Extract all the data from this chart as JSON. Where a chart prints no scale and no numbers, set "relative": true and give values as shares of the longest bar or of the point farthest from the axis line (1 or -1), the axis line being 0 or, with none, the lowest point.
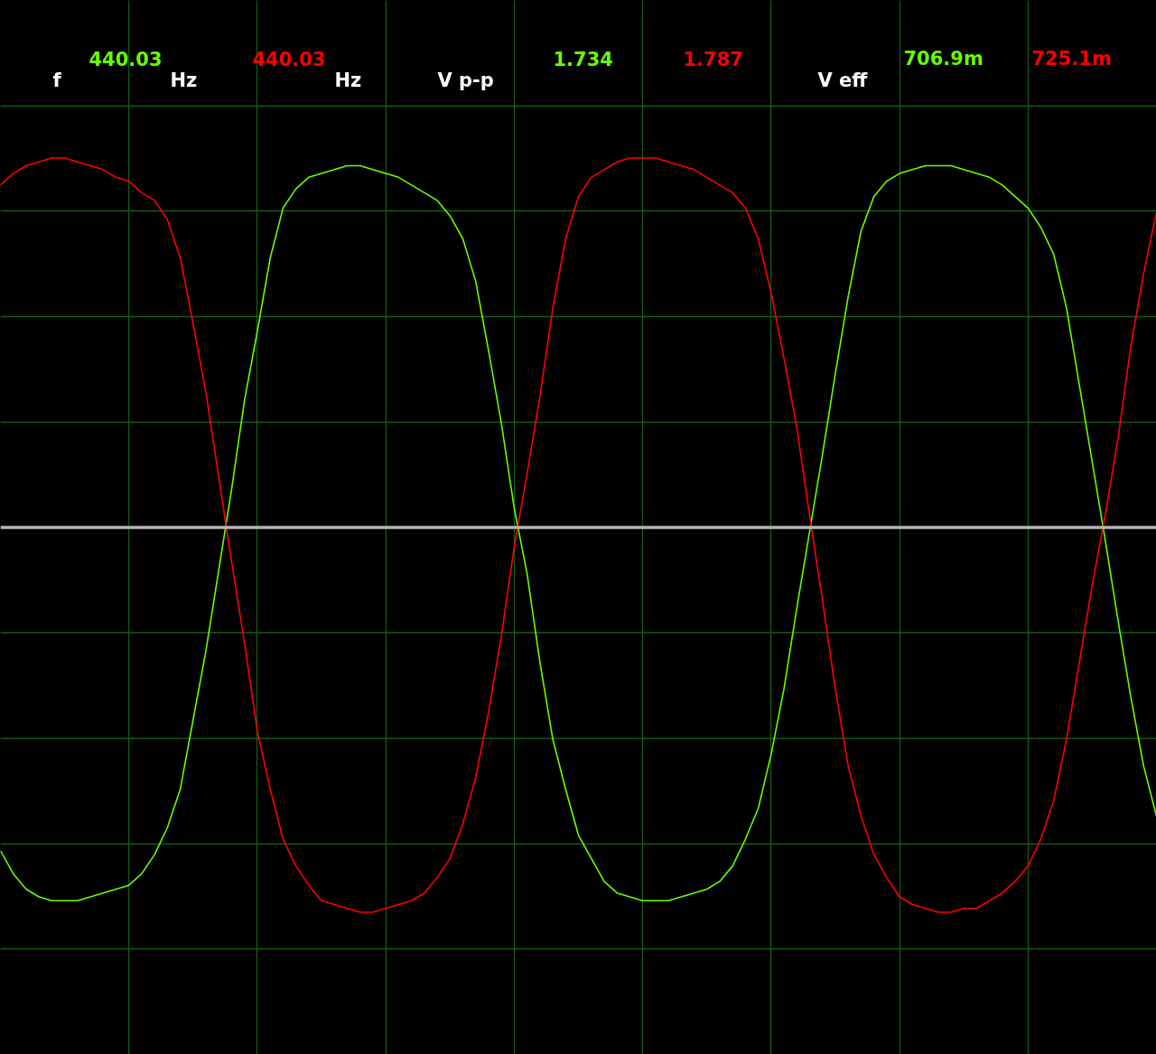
{
  "chart_data": {
    "type": "line",
    "relative": true,
    "grid": true,
    "categories": [
      null,
      null,
      null,
      null,
      null,
      null,
      null,
      null,
      null,
      null,
      null,
      null,
      null,
      null,
      null,
      null,
      null,
      null,
      null,
      null,
      null,
      null,
      null,
      null,
      null,
      null,
      null,
      null,
      null,
      null,
      null,
      null,
      null,
      null,
      null,
      null,
      null,
      null,
      null,
      null,
      null,
      null,
      null,
      null,
      null,
      null,
      null,
      null,
      null,
      null,
      null,
      null,
      null,
      null,
      null,
      null,
      null,
      null,
      null,
      null,
      null,
      null,
      null,
      null,
      null,
      null,
      null,
      null,
      null,
      null,
      null,
      null,
      null,
      null,
      null,
      null,
      null,
      null,
      null,
      null,
      null,
      null,
      null,
      null,
      null,
      null,
      null,
      null,
      null,
      null,
      null
    ],
    "series": [
      {
        "color": "#66ff00",
        "values": [
          -0.84,
          -0.9,
          -0.94,
          -0.96,
          -0.97,
          -0.97,
          -0.97,
          -0.96,
          -0.95,
          -0.94,
          -0.93,
          -0.9,
          -0.85,
          -0.78,
          -0.68,
          -0.5,
          -0.32,
          -0.11,
          0.1,
          0.33,
          0.51,
          0.7,
          0.83,
          0.88,
          0.91,
          0.92,
          0.93,
          0.94,
          0.94,
          0.93,
          0.92,
          0.91,
          0.89,
          0.87,
          0.85,
          0.81,
          0.75,
          0.64,
          0.46,
          0.27,
          0.05,
          -0.12,
          -0.35,
          -0.55,
          -0.68,
          -0.8,
          -0.86,
          -0.92,
          -0.95,
          -0.96,
          -0.97,
          -0.97,
          -0.97,
          -0.96,
          -0.95,
          -0.94,
          -0.92,
          -0.88,
          -0.81,
          -0.73,
          -0.59,
          -0.42,
          -0.21,
          -0.01,
          0.19,
          0.4,
          0.6,
          0.77,
          0.86,
          0.9,
          0.92,
          0.93,
          0.94,
          0.94,
          0.94,
          0.93,
          0.92,
          0.91,
          0.89,
          0.86,
          0.83,
          0.78,
          0.71,
          0.57,
          0.37,
          0.17,
          -0.03,
          -0.24,
          -0.44,
          -0.62,
          -0.75
        ]
      },
      {
        "color": "#ff0000",
        "values": [
          0.89,
          0.92,
          0.94,
          0.95,
          0.96,
          0.96,
          0.95,
          0.94,
          0.93,
          0.91,
          0.9,
          0.87,
          0.85,
          0.8,
          0.7,
          0.53,
          0.35,
          0.13,
          -0.09,
          -0.3,
          -0.53,
          -0.68,
          -0.81,
          -0.88,
          -0.93,
          -0.97,
          -0.98,
          -0.99,
          -1.0,
          -1.0,
          -0.99,
          -0.98,
          -0.97,
          -0.95,
          -0.91,
          -0.86,
          -0.77,
          -0.65,
          -0.48,
          -0.28,
          -0.05,
          0.14,
          0.34,
          0.57,
          0.75,
          0.86,
          0.91,
          0.93,
          0.95,
          0.96,
          0.96,
          0.96,
          0.95,
          0.94,
          0.93,
          0.91,
          0.89,
          0.87,
          0.83,
          0.75,
          0.61,
          0.44,
          0.26,
          0.03,
          -0.19,
          -0.42,
          -0.62,
          -0.75,
          -0.85,
          -0.91,
          -0.96,
          -0.98,
          -0.99,
          -1.0,
          -1.0,
          -0.99,
          -0.99,
          -0.97,
          -0.95,
          -0.92,
          -0.88,
          -0.81,
          -0.71,
          -0.55,
          -0.35,
          -0.15,
          0.03,
          0.23,
          0.47,
          0.66,
          0.82
        ]
      }
    ],
    "ref_lines": [
      {
        "axis": "y",
        "value": 0,
        "color": "#b4b4b4"
      }
    ],
    "annotations": [
      "f",
      "440.03",
      "Hz",
      "440.03",
      "Hz",
      "V p-p",
      "1.734",
      "1.787",
      "V eff",
      "706.9m",
      "725.1m"
    ]
  }
}
